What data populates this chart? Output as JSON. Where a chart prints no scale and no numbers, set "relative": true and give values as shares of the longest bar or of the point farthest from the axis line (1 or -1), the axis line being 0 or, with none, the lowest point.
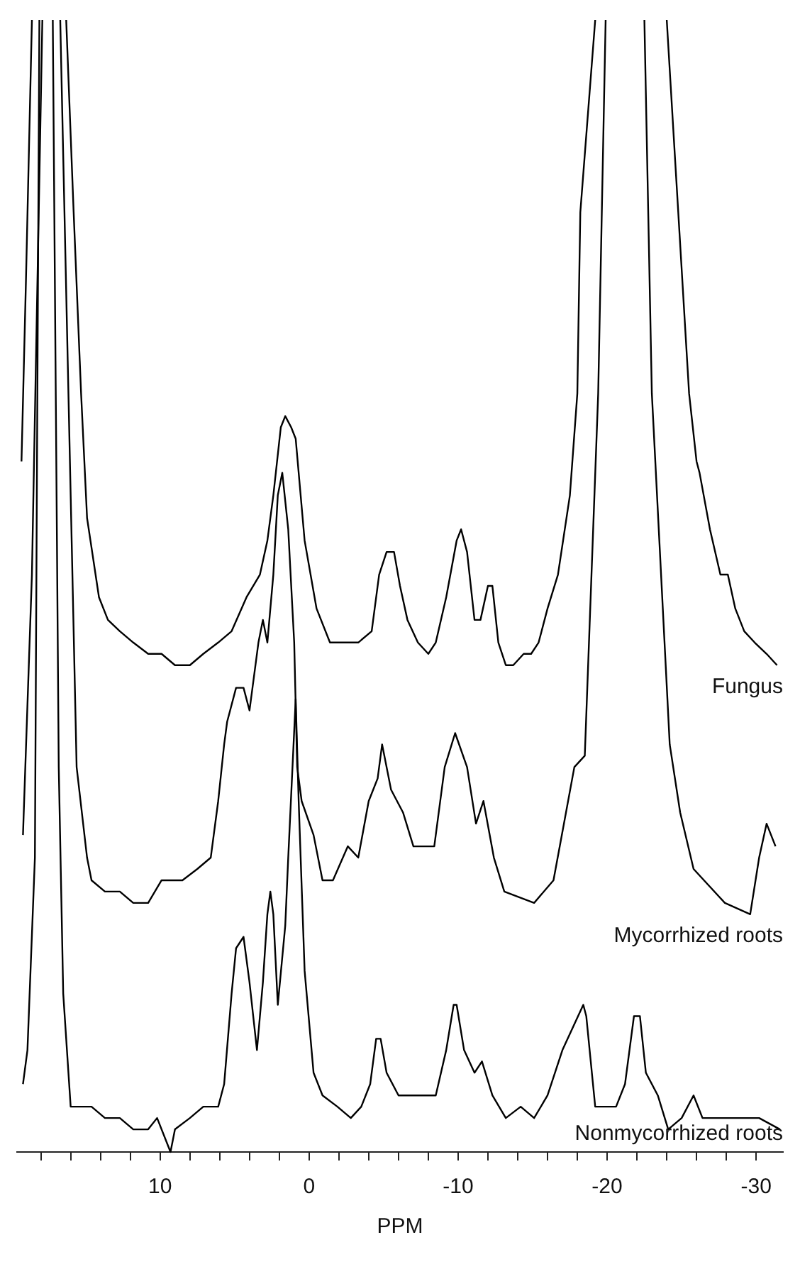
{
  "chart_data": {
    "type": "line",
    "relative": true,
    "xlabel": "PPM",
    "xlim": [
      19.6,
      -31.8
    ],
    "xticks": [
      {
        "value": 18,
        "label": null
      },
      {
        "value": 16,
        "label": null
      },
      {
        "value": 14,
        "label": null
      },
      {
        "value": 12,
        "label": null
      },
      10,
      {
        "value": 8,
        "label": null
      },
      {
        "value": 6,
        "label": null
      },
      {
        "value": 4,
        "label": null
      },
      {
        "value": 2,
        "label": null
      },
      0,
      {
        "value": -2,
        "label": null
      },
      {
        "value": -4,
        "label": null
      },
      {
        "value": -6,
        "label": null
      },
      {
        "value": -8,
        "label": null
      },
      -10,
      {
        "value": -12,
        "label": null
      },
      {
        "value": -14,
        "label": null
      },
      {
        "value": -16,
        "label": null
      },
      {
        "value": -18,
        "label": null
      },
      -20,
      {
        "value": -22,
        "label": null
      },
      {
        "value": -24,
        "label": null
      },
      {
        "value": -26,
        "label": null
      },
      {
        "value": -28,
        "label": null
      },
      -30
    ],
    "grid": false,
    "legend": false,
    "marker": "none",
    "line_style": "solid",
    "series": [
      {
        "name": "Fungus",
        "color": "#000000",
        "x": [
          19.3,
          19.0,
          18.6,
          17.5,
          16.3,
          15.8,
          15.3,
          14.9,
          14.1,
          13.5,
          12.7,
          11.8,
          10.8,
          9.9,
          9.0,
          8.0,
          7.1,
          6.1,
          5.2,
          4.2,
          3.3,
          2.8,
          2.4,
          1.9,
          1.6,
          1.2,
          0.9,
          0.7,
          0.3,
          -0.5,
          -1.4,
          -2.4,
          -3.3,
          -4.2,
          -4.7,
          -5.2,
          -5.7,
          -6.1,
          -6.6,
          -7.3,
          -8.0,
          -8.5,
          -9.2,
          -9.9,
          -10.2,
          -10.6,
          -11.1,
          -11.5,
          -12.0,
          -12.3,
          -12.7,
          -13.2,
          -13.7,
          -14.4,
          -14.9,
          -15.4,
          -16.0,
          -16.7,
          -17.5,
          -18.0,
          -18.2,
          -19.2,
          -21.6,
          -24.0,
          -25.5,
          -26.0,
          -26.2,
          -26.9,
          -27.6,
          -28.1,
          -28.6,
          -29.2,
          -29.9,
          -30.7,
          -31.4
        ],
        "values": [
          0.61,
          0.77,
          1.0,
          null,
          1.0,
          0.83,
          0.67,
          0.56,
          0.49,
          0.47,
          0.46,
          0.45,
          0.44,
          0.44,
          0.43,
          0.43,
          0.44,
          0.45,
          0.46,
          0.49,
          0.51,
          0.54,
          0.58,
          0.64,
          0.65,
          0.64,
          0.63,
          0.6,
          0.54,
          0.48,
          0.45,
          0.45,
          0.45,
          0.46,
          0.51,
          0.53,
          0.53,
          0.5,
          0.47,
          0.45,
          0.44,
          0.45,
          0.49,
          0.54,
          0.55,
          0.53,
          0.47,
          0.47,
          0.5,
          0.5,
          0.45,
          0.43,
          0.43,
          0.44,
          0.44,
          0.45,
          0.48,
          0.51,
          0.58,
          0.67,
          0.83,
          1.0,
          null,
          1.0,
          0.67,
          0.61,
          0.6,
          0.55,
          0.51,
          0.51,
          0.48,
          0.46,
          0.45,
          0.44,
          0.43
        ]
      },
      {
        "name": "Mycorrhized roots",
        "color": "#000000",
        "x": [
          19.2,
          18.6,
          17.9,
          17.3,
          16.7,
          15.6,
          14.9,
          14.6,
          13.7,
          12.7,
          11.8,
          10.8,
          9.9,
          8.5,
          7.5,
          6.6,
          6.1,
          5.7,
          5.5,
          4.9,
          4.4,
          4.0,
          3.4,
          3.1,
          2.8,
          2.4,
          2.1,
          1.8,
          1.4,
          1.0,
          0.8,
          0.5,
          -0.3,
          -0.9,
          -1.6,
          -2.6,
          -3.3,
          -4.0,
          -4.6,
          -4.9,
          -5.5,
          -6.3,
          -7.0,
          -8.4,
          -9.1,
          -9.8,
          -10.6,
          -11.2,
          -11.7,
          -12.4,
          -13.1,
          -15.1,
          -16.4,
          -17.1,
          -17.8,
          -18.5,
          -19.4,
          -19.9,
          -21.2,
          -22.5,
          -23.0,
          -24.2,
          -24.9,
          -25.8,
          -26.5,
          -27.9,
          -29.6,
          -30.2,
          -30.7,
          -31.3
        ],
        "values": [
          0.28,
          0.51,
          1.0,
          null,
          1.0,
          0.34,
          0.26,
          0.24,
          0.23,
          0.23,
          0.22,
          0.22,
          0.24,
          0.24,
          0.25,
          0.26,
          0.31,
          0.36,
          0.38,
          0.41,
          0.41,
          0.39,
          0.45,
          0.47,
          0.45,
          0.51,
          0.58,
          0.6,
          0.55,
          0.45,
          0.34,
          0.31,
          0.28,
          0.24,
          0.24,
          0.27,
          0.26,
          0.31,
          0.33,
          0.36,
          0.32,
          0.3,
          0.27,
          0.27,
          0.34,
          0.37,
          0.34,
          0.29,
          0.31,
          0.26,
          0.23,
          0.22,
          0.24,
          0.29,
          0.34,
          0.35,
          0.67,
          1.0,
          null,
          1.0,
          0.67,
          0.36,
          0.3,
          0.25,
          0.24,
          0.22,
          0.21,
          0.26,
          0.29,
          0.27
        ]
      },
      {
        "name": "Nonmycorrhized roots",
        "color": "#000000",
        "x": [
          19.2,
          18.9,
          18.4,
          18.1,
          17.6,
          17.2,
          16.8,
          16.5,
          16.0,
          15.6,
          14.6,
          13.7,
          12.7,
          11.8,
          10.8,
          10.2,
          9.3,
          9.0,
          8.0,
          7.1,
          6.1,
          5.7,
          5.2,
          4.9,
          4.4,
          4.0,
          3.5,
          3.1,
          2.8,
          2.6,
          2.4,
          2.1,
          1.6,
          1.4,
          0.9,
          0.7,
          0.3,
          -0.3,
          -0.9,
          -1.9,
          -2.8,
          -3.5,
          -4.1,
          -4.5,
          -4.8,
          -5.2,
          -6.0,
          -6.6,
          -7.5,
          -8.5,
          -9.2,
          -9.7,
          -9.9,
          -10.4,
          -11.1,
          -11.6,
          -12.3,
          -13.2,
          -14.2,
          -15.1,
          -16.0,
          -17.0,
          -18.4,
          -18.6,
          -19.2,
          -19.8,
          -20.6,
          -21.2,
          -21.8,
          -22.2,
          -22.6,
          -23.4,
          -24.1,
          -25.0,
          -25.8,
          -26.4,
          -27.8,
          -29.2,
          -30.2,
          -31.6
        ],
        "values": [
          0.06,
          0.09,
          0.26,
          1.0,
          null,
          1.0,
          0.34,
          0.14,
          0.04,
          0.04,
          0.04,
          0.03,
          0.03,
          0.02,
          0.02,
          0.03,
          0,
          0.02,
          0.03,
          0.04,
          0.04,
          0.06,
          0.14,
          0.18,
          0.19,
          0.15,
          0.09,
          0.15,
          0.21,
          0.23,
          0.21,
          0.13,
          0.2,
          0.26,
          0.4,
          0.31,
          0.16,
          0.07,
          0.05,
          0.04,
          0.03,
          0.04,
          0.06,
          0.1,
          0.1,
          0.07,
          0.05,
          0.05,
          0.05,
          0.05,
          0.09,
          0.13,
          0.13,
          0.09,
          0.07,
          0.08,
          0.05,
          0.03,
          0.04,
          0.03,
          0.05,
          0.09,
          0.13,
          0.12,
          0.04,
          0.04,
          0.04,
          0.06,
          0.12,
          0.12,
          0.07,
          0.05,
          0.02,
          0.03,
          0.05,
          0.03,
          0.03,
          0.03,
          0.03,
          0.02
        ]
      }
    ]
  }
}
